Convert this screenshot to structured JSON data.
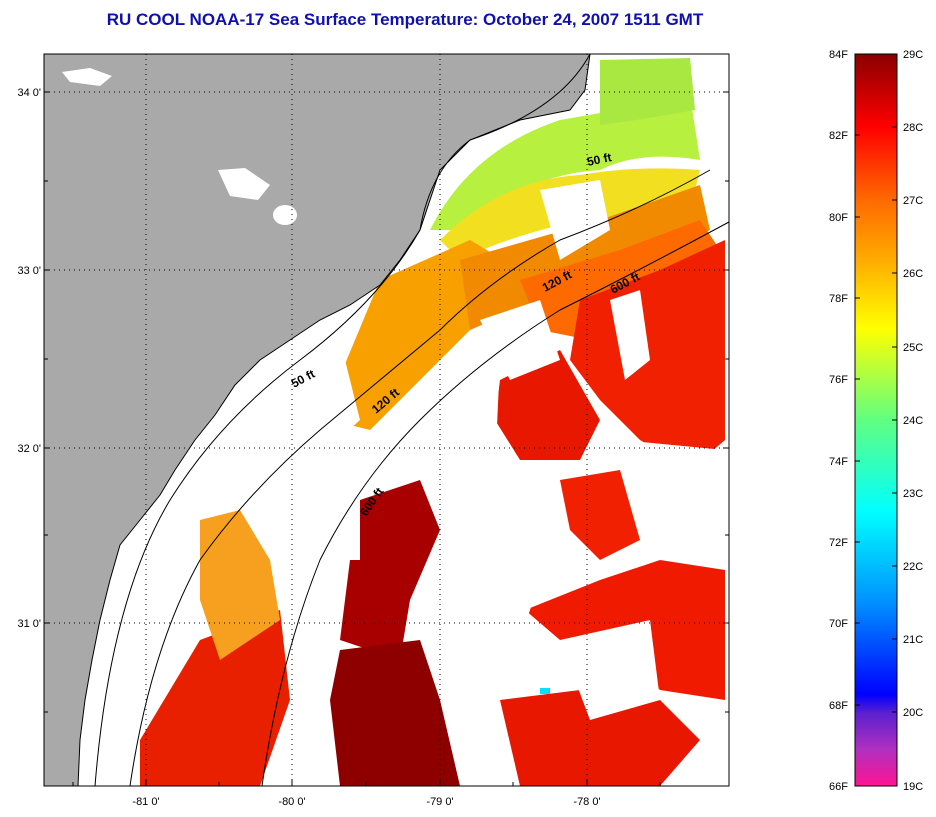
{
  "title": "RU COOL  NOAA-17  Sea Surface Temperature:  October 24, 2007 1511 GMT",
  "map": {
    "lat_labels": [
      "34 0'",
      "33 0'",
      "32 0'",
      "31 0'"
    ],
    "lon_labels": [
      "-81 0'",
      "-80 0'",
      "-79 0'",
      "-78 0'"
    ],
    "contours": [
      "50 ft",
      "120 ft",
      "600 ft",
      "50 ft",
      "120 ft",
      "600 ft"
    ],
    "colors": {
      "land": "#a9a9a9",
      "cloud": "#ffffff",
      "coastline": "#000000"
    }
  },
  "colorbar": {
    "fahrenheit": [
      "84F",
      "82F",
      "80F",
      "78F",
      "76F",
      "74F",
      "72F",
      "70F",
      "68F",
      "66F"
    ],
    "celsius": [
      "29C",
      "28C",
      "27C",
      "26C",
      "25C",
      "24C",
      "23C",
      "22C",
      "21C",
      "20C",
      "19C"
    ],
    "colors": [
      "#8b0000",
      "#ff0000",
      "#ff6a00",
      "#ffcc00",
      "#ffff00",
      "#88ff44",
      "#00ffff",
      "#00a0ff",
      "#0000ff",
      "#8a2be2",
      "#ff1493"
    ]
  }
}
